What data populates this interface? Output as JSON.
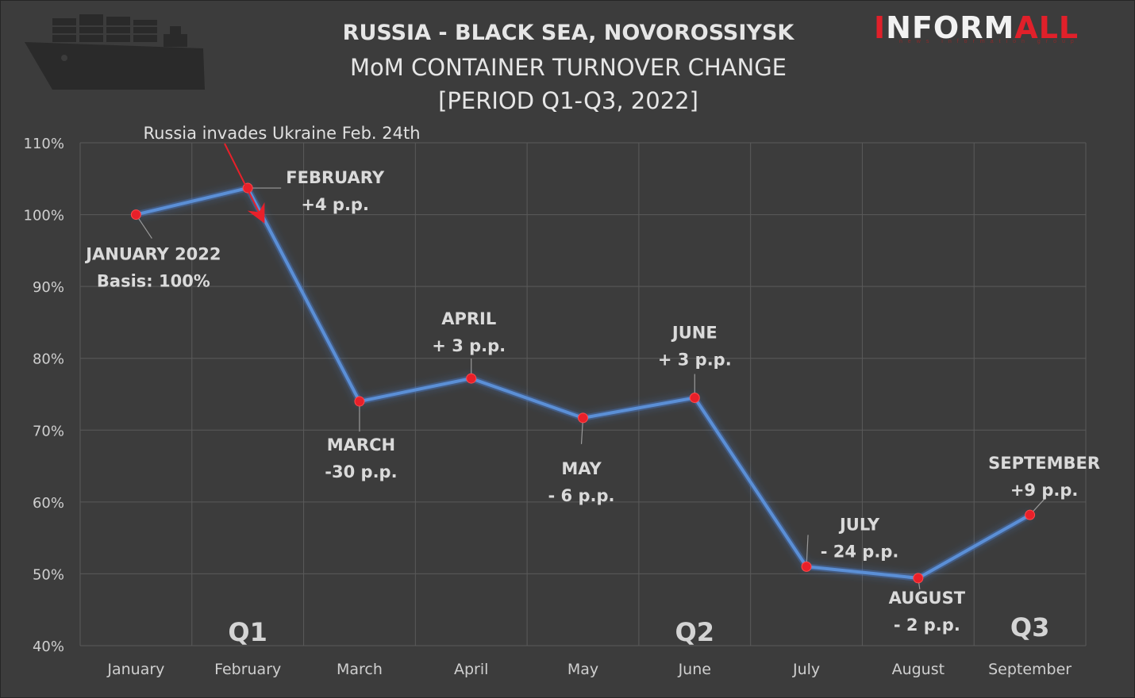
{
  "title": {
    "line1": "RUSSIA - BLACK SEA, NOVOROSSIYSK",
    "line2": "MoM CONTAINER TURNOVER CHANGE",
    "line3": "[PERIOD Q1-Q3, 2022]"
  },
  "logo": {
    "text_red": "I",
    "text_white": "NFORM",
    "text_red2": "ALL",
    "subtitle": "news information group"
  },
  "icons": {
    "ship": "container-ship-icon",
    "arrow": "red-arrow-icon"
  },
  "colors": {
    "line": "#5b8fd6",
    "point": "#e8202a",
    "background": "#3c3c3c",
    "grid": "#5a5a5a",
    "arrow": "#e8202a"
  },
  "event_annotation": "Russia invades Ukraine Feb. 24th",
  "quarters": [
    "Q1",
    "Q2",
    "Q3"
  ],
  "chart_data": {
    "type": "line",
    "categories": [
      "January",
      "February",
      "March",
      "April",
      "May",
      "June",
      "July",
      "August",
      "September"
    ],
    "series": [
      {
        "values": [
          100,
          103.7,
          74,
          77.2,
          71.7,
          74.5,
          51,
          49.4,
          58.2
        ]
      }
    ],
    "ylim": [
      40,
      110
    ],
    "yticks": [
      40,
      50,
      60,
      70,
      80,
      90,
      100,
      110
    ],
    "ytick_labels": [
      "40%",
      "50%",
      "60%",
      "70%",
      "80%",
      "90%",
      "100%",
      "110%"
    ],
    "grid": true,
    "annotations": [
      {
        "line1": "JANUARY 2022",
        "line2": "Basis: 100%"
      },
      {
        "line1": "FEBRUARY",
        "line2": "+4 p.p."
      },
      {
        "line1": "MARCH",
        "line2": "-30 p.p."
      },
      {
        "line1": "APRIL",
        "line2": "+ 3 p.p."
      },
      {
        "line1": "MAY",
        "line2": "- 6 p.p."
      },
      {
        "line1": "JUNE",
        "line2": "+ 3 p.p."
      },
      {
        "line1": "JULY",
        "line2": "- 24 p.p."
      },
      {
        "line1": "AUGUST",
        "line2": "- 2 p.p."
      },
      {
        "line1": "SEPTEMBER",
        "line2": "+9 p.p."
      }
    ]
  }
}
